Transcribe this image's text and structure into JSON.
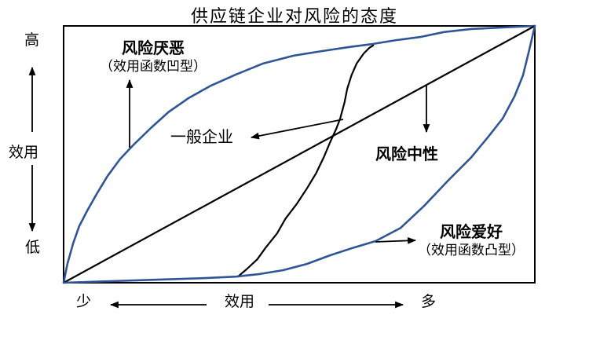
{
  "title": "供应链企业对风险的态度",
  "colors": {
    "blue_curve": "#2f5597",
    "black": "#000000",
    "background": "#ffffff"
  },
  "y_axis": {
    "top": "高",
    "label": "效用",
    "bottom": "低"
  },
  "x_axis": {
    "left": "少",
    "label": "效用",
    "right": "多"
  },
  "annotations": {
    "risk_averse_line1": "风险厌恶",
    "risk_averse_line2": "（效用函数凹型）",
    "general_label": "一般企业",
    "neutral_label": "风险中性",
    "risk_loving_line1": "风险爱好",
    "risk_loving_line2": "（效用函数凸型）"
  },
  "chart_data": {
    "type": "line",
    "title": "供应链企业对风险的态度",
    "xlabel": "效用（少 → 多）",
    "ylabel": "效用（低 → 高）",
    "xlim": [
      0,
      100
    ],
    "ylim": [
      0,
      100
    ],
    "grid": false,
    "legend": "inline arrow annotations",
    "series": [
      {
        "key": "risk-averse-curve",
        "name": "风险厌恶（效用函数凹型）",
        "color": "#2f5597",
        "width": 2.6,
        "x": [
          0,
          0.8,
          2,
          3.3,
          5,
          7,
          9.3,
          12,
          15,
          18.6,
          22.3,
          26.6,
          31.3,
          36.6,
          42.4,
          48.8,
          54.9,
          60.7,
          65.7,
          70.7,
          75.7,
          80.7,
          86.5,
          93.2,
          100
        ],
        "y": [
          0,
          7.3,
          15.2,
          22,
          28,
          34.5,
          41.5,
          48.2,
          54,
          60.4,
          66.5,
          72,
          76.8,
          81.1,
          85.4,
          88.4,
          90.2,
          91.8,
          93,
          94.5,
          95.7,
          97.6,
          98.8,
          99.4,
          100
        ]
      },
      {
        "key": "risk-neutral-line",
        "name": "风险中性",
        "color": "#000000",
        "width": 2.2,
        "x": [
          0,
          100
        ],
        "y": [
          0,
          100
        ]
      },
      {
        "key": "general-enterprise-curve",
        "name": "一般企业",
        "color": "#000000",
        "width": 2.2,
        "x": [
          37,
          38.8,
          41.1,
          42.9,
          45.3,
          47.1,
          49.4,
          51.6,
          53.6,
          55.2,
          56.6,
          57.9,
          58.7,
          59.6,
          60.2,
          61.1,
          62.2,
          63.7,
          64.9,
          65.7
        ],
        "y": [
          2.4,
          5.2,
          9.1,
          13.7,
          19.2,
          25,
          30.5,
          36.6,
          42.7,
          48.8,
          54.9,
          60.1,
          64,
          70.1,
          75.6,
          80.8,
          85.4,
          89.3,
          91.5,
          92.4
        ]
      },
      {
        "key": "risk-loving-curve",
        "name": "风险爱好（效用函数凸型）",
        "color": "#2f5597",
        "width": 2.6,
        "x": [
          0,
          10,
          20,
          30,
          36.6,
          41.6,
          46.6,
          51.6,
          56.6,
          61.6,
          66.2,
          71.5,
          76.5,
          81.5,
          86.5,
          90.2,
          93.2,
          95.7,
          97.5,
          98.8,
          99.5,
          100
        ],
        "y": [
          0,
          0.6,
          1.2,
          1.8,
          2.4,
          3.4,
          4.9,
          7.3,
          10.7,
          13.7,
          16.2,
          21.3,
          29.9,
          39.6,
          48.8,
          57,
          64,
          72.6,
          80.8,
          90.5,
          96,
          100
        ]
      }
    ]
  }
}
